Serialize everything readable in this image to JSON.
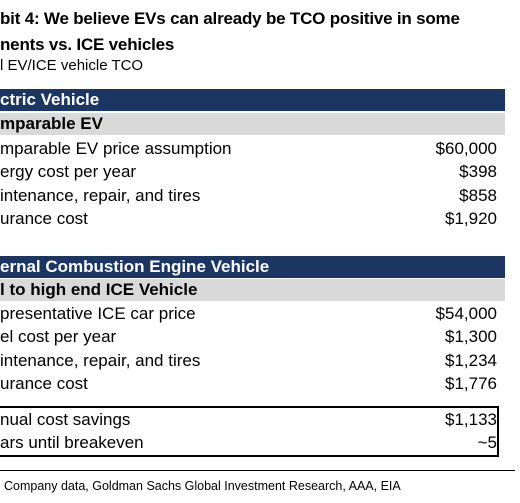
{
  "header": {
    "title_lines": [
      "bit 4: We believe EVs can already be TCO positive in some",
      "nents vs. ICE vehicles"
    ],
    "subtitle": "l EV/ICE vehicle TCO"
  },
  "sections": [
    {
      "title": "ctric Vehicle",
      "subtitle": "mparable EV",
      "rows": [
        [
          "mparable EV price assumption",
          "$60,000"
        ],
        [
          "ergy cost per year",
          "$398"
        ],
        [
          "intenance, repair, and tires",
          "$858"
        ],
        [
          "urance cost",
          "$1,920"
        ]
      ]
    },
    {
      "title": "ernal Combustion Engine Vehicle",
      "subtitle": "l to high end ICE Vehicle",
      "rows": [
        [
          "presentative ICE car price",
          "$54,000"
        ],
        [
          "el cost per year",
          "$1,300"
        ],
        [
          "intenance, repair, and tires",
          "$1,234"
        ],
        [
          "urance cost",
          "$1,776"
        ]
      ]
    }
  ],
  "summary": {
    "rows": [
      [
        "nual cost savings",
        "$1,133"
      ],
      [
        "ars until breakeven",
        "~5"
      ]
    ]
  },
  "source": "Company data, Goldman Sachs Global Investment Research, AAA, EIA"
}
